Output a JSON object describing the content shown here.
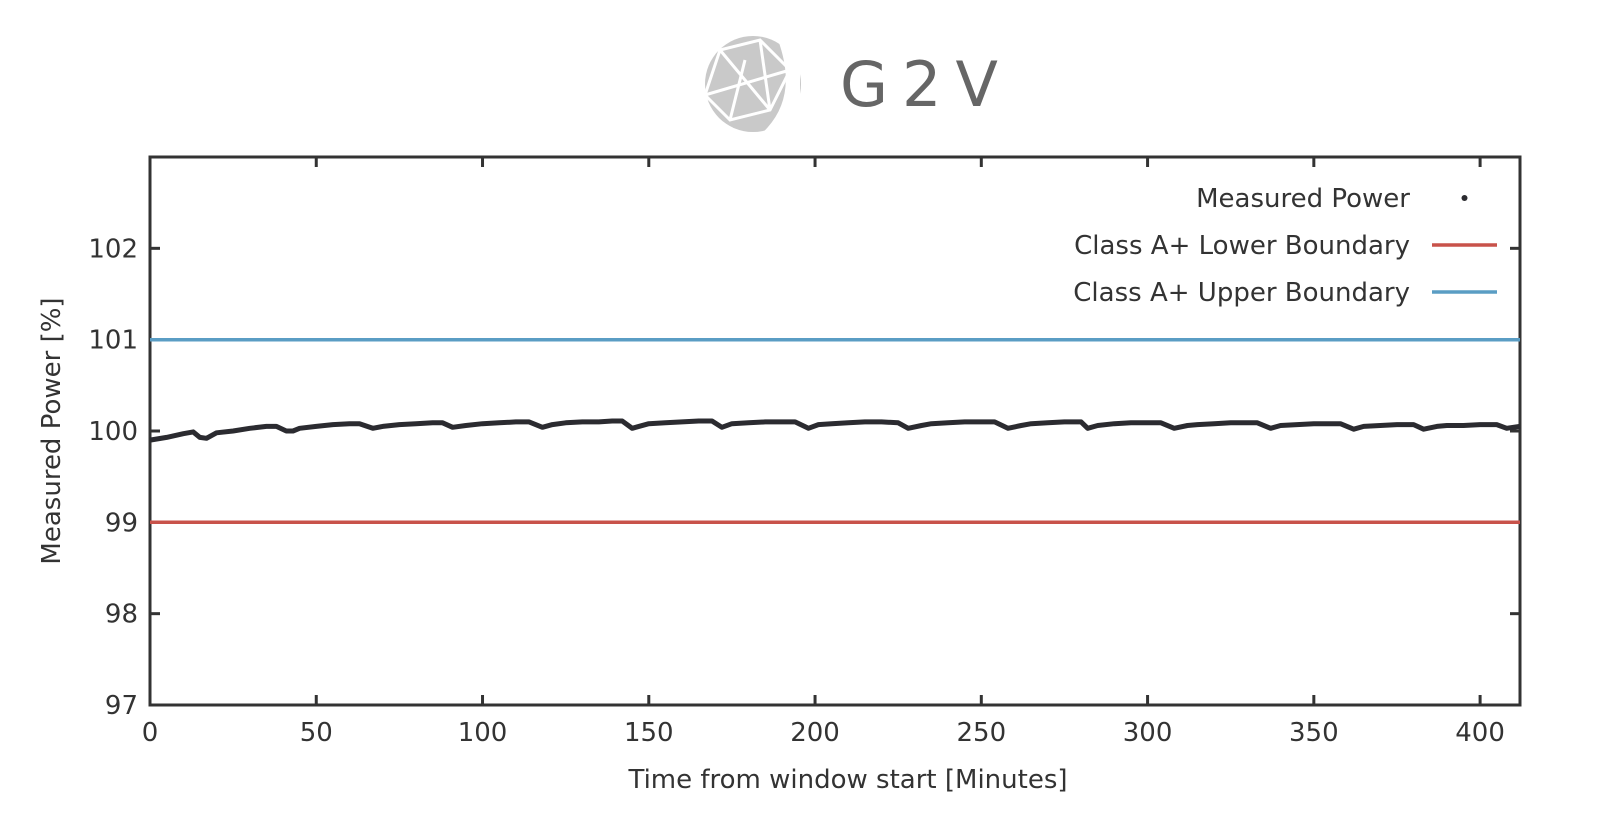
{
  "logo": {
    "text": "G2V"
  },
  "chart_data": {
    "type": "line",
    "xlabel": "Time from window start [Minutes]",
    "ylabel": "Measured Power [%]",
    "xlim": [
      0,
      412
    ],
    "ylim": [
      97,
      103
    ],
    "x_ticks": [
      0,
      50,
      100,
      150,
      200,
      250,
      300,
      350,
      400
    ],
    "y_ticks": [
      97,
      98,
      99,
      100,
      101,
      102
    ],
    "grid": false,
    "legend_position": "top-right",
    "legend": [
      {
        "label": "Measured Power",
        "marker": "dot",
        "color": "#2b2b30"
      },
      {
        "label": "Class A+ Lower Boundary",
        "marker": "line",
        "color": "#c8524a"
      },
      {
        "label": "Class A+ Upper Boundary",
        "marker": "line",
        "color": "#5a9dc4"
      }
    ],
    "series": [
      {
        "name": "Measured Power",
        "color": "#2b2b30",
        "x": [
          0,
          5,
          10,
          13,
          15,
          17,
          20,
          25,
          30,
          35,
          38,
          41,
          43,
          45,
          50,
          55,
          60,
          63,
          67,
          70,
          75,
          80,
          85,
          88,
          91,
          95,
          100,
          105,
          110,
          114,
          118,
          121,
          125,
          130,
          135,
          139,
          142,
          145,
          150,
          155,
          160,
          165,
          169,
          172,
          175,
          180,
          185,
          190,
          194,
          198,
          201,
          205,
          210,
          215,
          220,
          225,
          228,
          232,
          235,
          240,
          245,
          250,
          254,
          258,
          262,
          265,
          270,
          275,
          280,
          282,
          285,
          290,
          295,
          300,
          304,
          308,
          312,
          315,
          320,
          325,
          330,
          333,
          337,
          340,
          345,
          350,
          355,
          358,
          362,
          365,
          370,
          375,
          380,
          383,
          387,
          390,
          395,
          400,
          405,
          408,
          410,
          412
        ],
        "y": [
          99.9,
          99.93,
          99.97,
          99.99,
          99.93,
          99.92,
          99.98,
          100.0,
          100.03,
          100.05,
          100.05,
          100.0,
          100.0,
          100.03,
          100.05,
          100.07,
          100.08,
          100.08,
          100.03,
          100.05,
          100.07,
          100.08,
          100.09,
          100.09,
          100.04,
          100.06,
          100.08,
          100.09,
          100.1,
          100.1,
          100.04,
          100.07,
          100.09,
          100.1,
          100.1,
          100.11,
          100.11,
          100.03,
          100.08,
          100.09,
          100.1,
          100.11,
          100.11,
          100.04,
          100.08,
          100.09,
          100.1,
          100.1,
          100.1,
          100.03,
          100.07,
          100.08,
          100.09,
          100.1,
          100.1,
          100.09,
          100.03,
          100.06,
          100.08,
          100.09,
          100.1,
          100.1,
          100.1,
          100.03,
          100.06,
          100.08,
          100.09,
          100.1,
          100.1,
          100.03,
          100.06,
          100.08,
          100.09,
          100.09,
          100.09,
          100.03,
          100.06,
          100.07,
          100.08,
          100.09,
          100.09,
          100.09,
          100.03,
          100.06,
          100.07,
          100.08,
          100.08,
          100.08,
          100.02,
          100.05,
          100.06,
          100.07,
          100.07,
          100.02,
          100.05,
          100.06,
          100.06,
          100.07,
          100.07,
          100.03,
          100.04,
          100.05
        ]
      },
      {
        "name": "Class A+ Lower Boundary",
        "color": "#c8524a",
        "x": [
          0,
          412
        ],
        "y": [
          99,
          99
        ]
      },
      {
        "name": "Class A+ Upper Boundary",
        "color": "#5a9dc4",
        "x": [
          0,
          412
        ],
        "y": [
          101,
          101
        ]
      }
    ]
  }
}
